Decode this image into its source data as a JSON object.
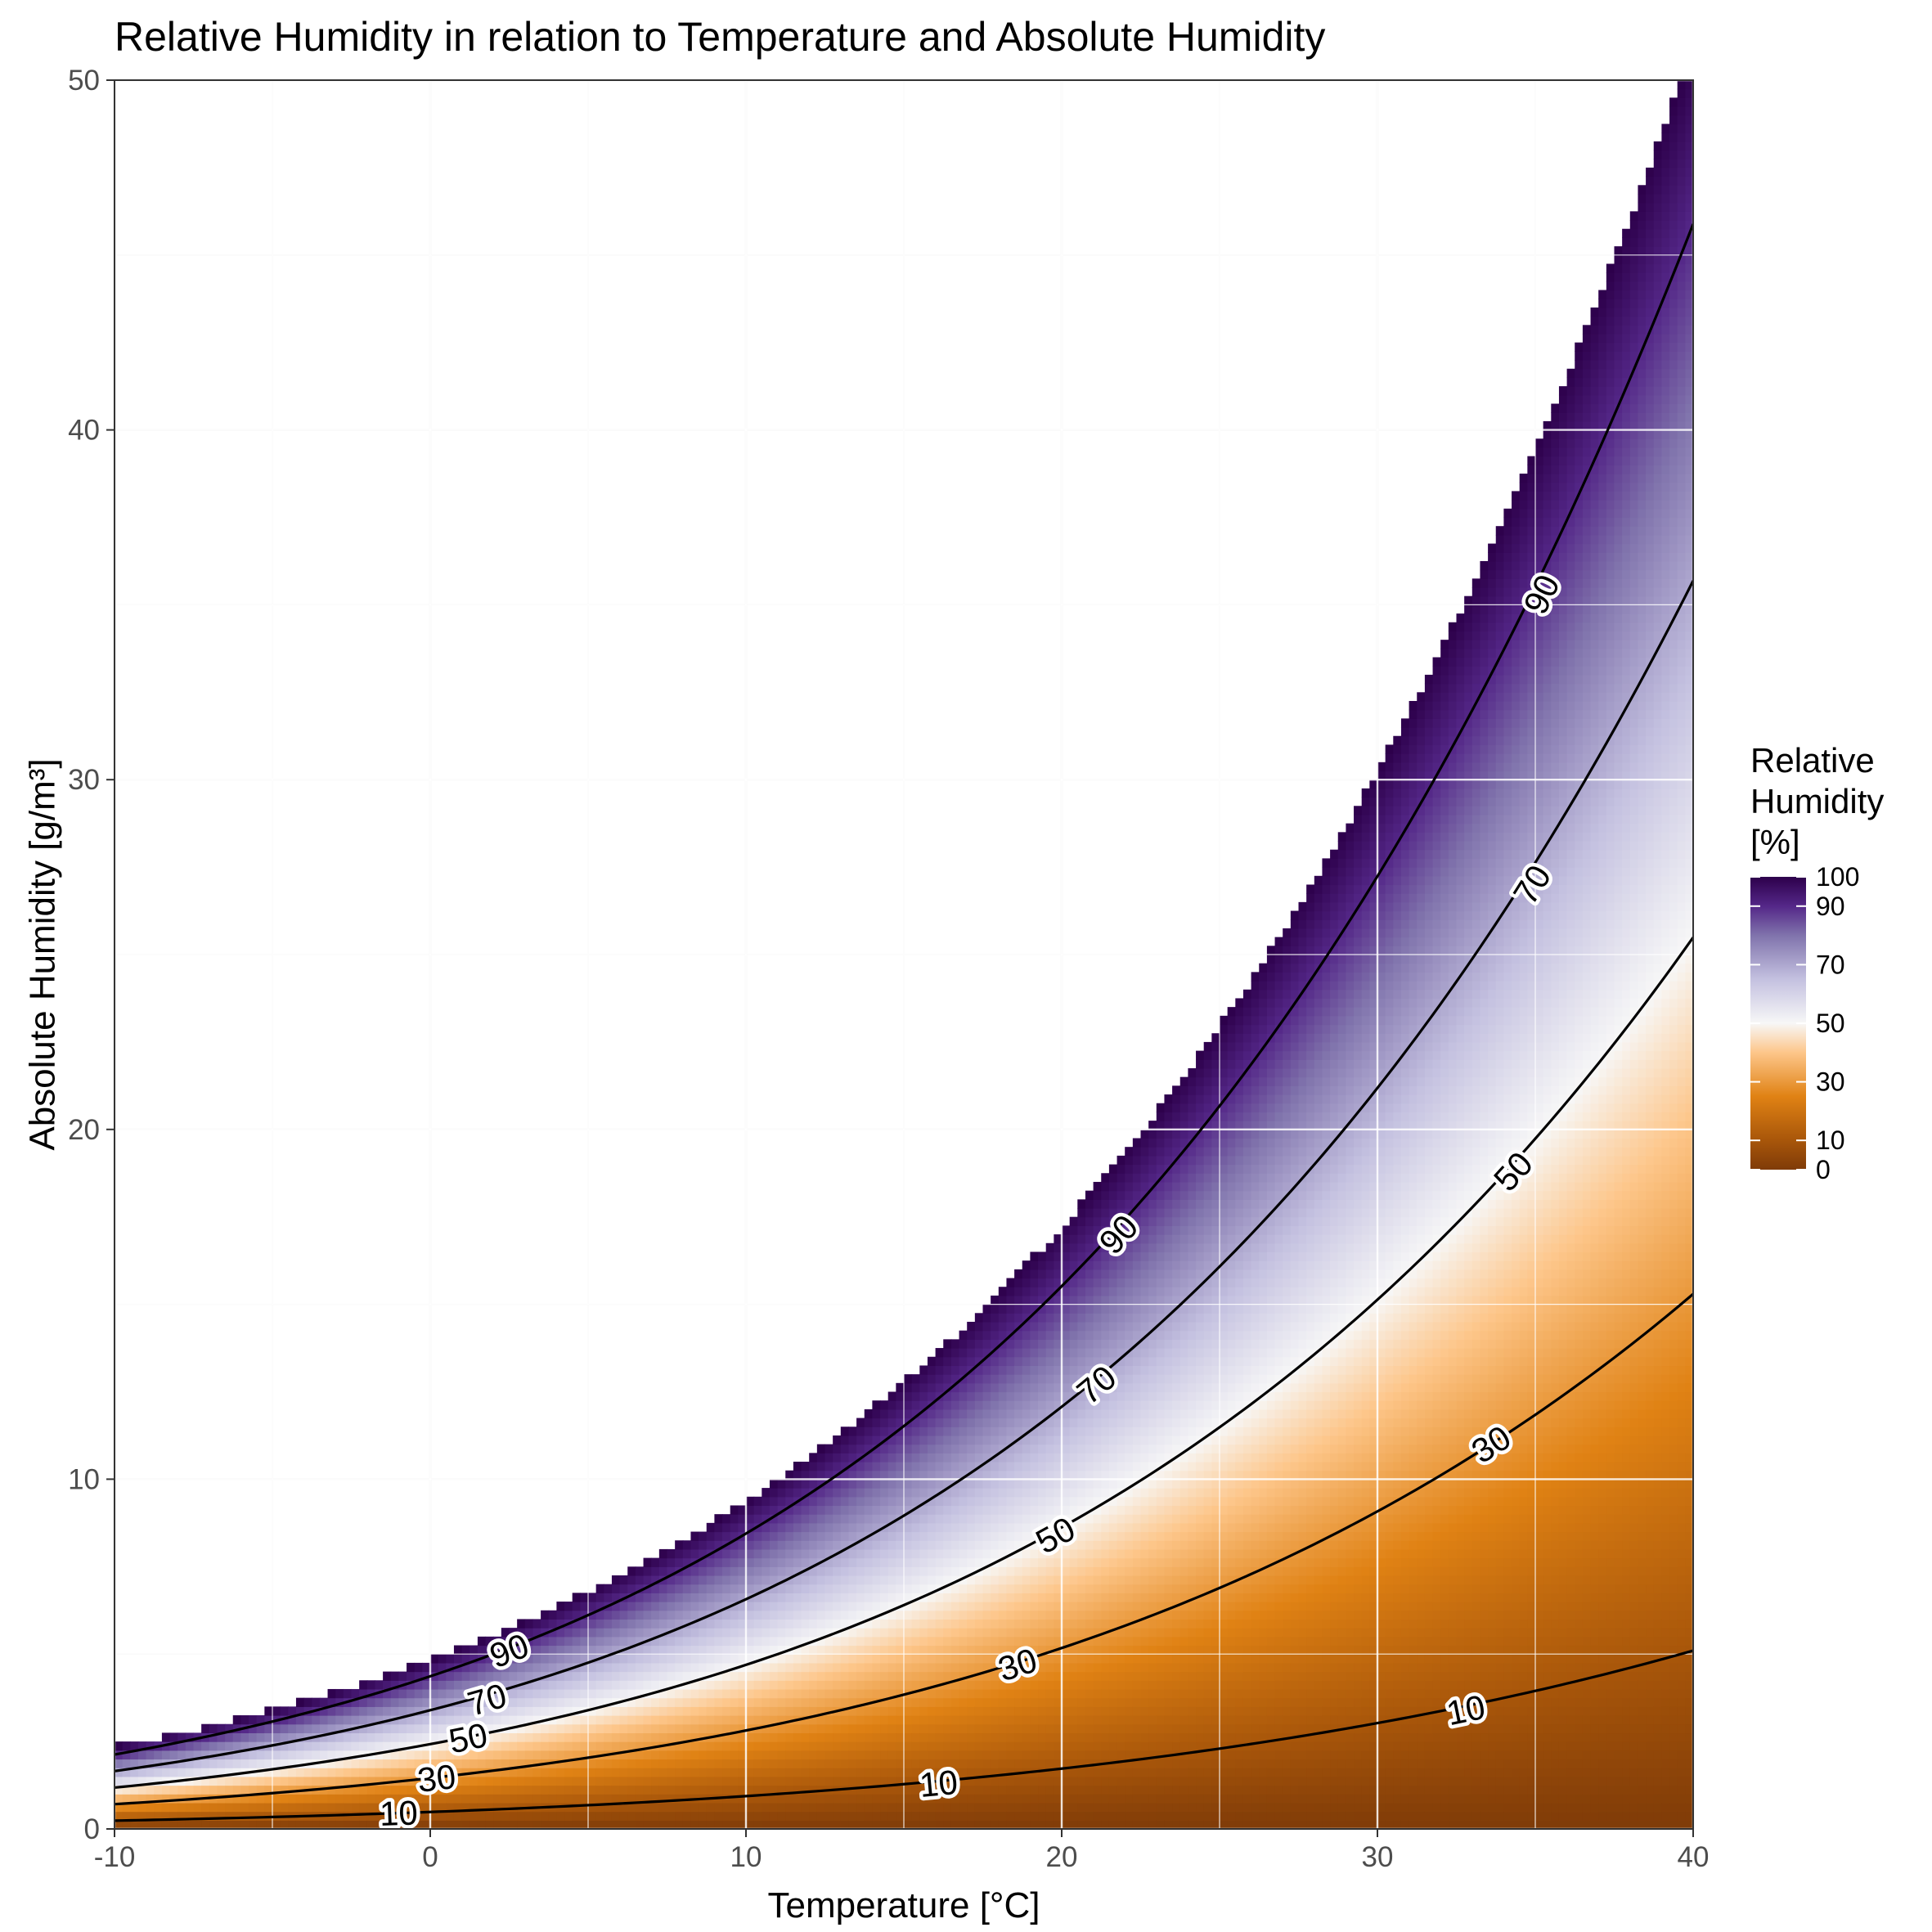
{
  "chart_data": {
    "type": "heatmap",
    "title": "Relative Humidity in relation to Temperature and Absolute Humidity",
    "xlabel": "Temperature [°C]",
    "ylabel": "Absolute Humidity [g/m³]",
    "xlim": [
      -10,
      40
    ],
    "ylim": [
      0,
      50
    ],
    "x_ticks": [
      "-10",
      "0",
      "10",
      "20",
      "30",
      "40"
    ],
    "y_ticks": [
      "0",
      "10",
      "20",
      "30",
      "40",
      "50"
    ],
    "grid": true,
    "legend": {
      "title": [
        "Relative",
        "Humidity",
        "[%]"
      ],
      "placement": "right",
      "ticks": [
        "100",
        "90",
        "70",
        "50",
        "30",
        "10",
        "0"
      ],
      "range": [
        0,
        100
      ],
      "colors": {
        "0": "#7f3b08",
        "10": "#a8560a",
        "25": "#e08214",
        "40": "#fdc68a",
        "50": "#f7f7f7",
        "65": "#c4c1e0",
        "80": "#8073ac",
        "90": "#542788",
        "100": "#2d004b"
      }
    },
    "saturation_curve": {
      "description_values": "absolute humidity at 100% relative humidity",
      "x": [
        -10,
        -5,
        0,
        5,
        10,
        15,
        20,
        25,
        30,
        35,
        40
      ],
      "y": [
        2.36,
        3.41,
        4.85,
        6.8,
        9.4,
        12.8,
        17.3,
        23.0,
        30.3,
        39.6,
        51.1
      ]
    },
    "contour_levels": [
      10,
      30,
      50,
      70,
      90
    ],
    "contour_labels": [
      {
        "level": "10",
        "x": -1,
        "y": 0.45
      },
      {
        "level": "30",
        "x": 0.2,
        "y": 1.45
      },
      {
        "level": "50",
        "x": 1.2,
        "y": 2.6
      },
      {
        "level": "70",
        "x": 1.8,
        "y": 3.7
      },
      {
        "level": "90",
        "x": 2.5,
        "y": 5.1
      },
      {
        "level": "10",
        "x": 16.1,
        "y": 1.3
      },
      {
        "level": "30",
        "x": 18.6,
        "y": 4.7
      },
      {
        "level": "50",
        "x": 19.8,
        "y": 8.4
      },
      {
        "level": "70",
        "x": 21.1,
        "y": 12.7
      },
      {
        "level": "90",
        "x": 21.8,
        "y": 17.0
      },
      {
        "level": "10",
        "x": 32.8,
        "y": 3.4
      },
      {
        "level": "30",
        "x": 33.6,
        "y": 11.0
      },
      {
        "level": "50",
        "x": 34.3,
        "y": 18.8
      },
      {
        "level": "70",
        "x": 34.9,
        "y": 27.0
      },
      {
        "level": "90",
        "x": 35.2,
        "y": 35.3
      }
    ]
  }
}
